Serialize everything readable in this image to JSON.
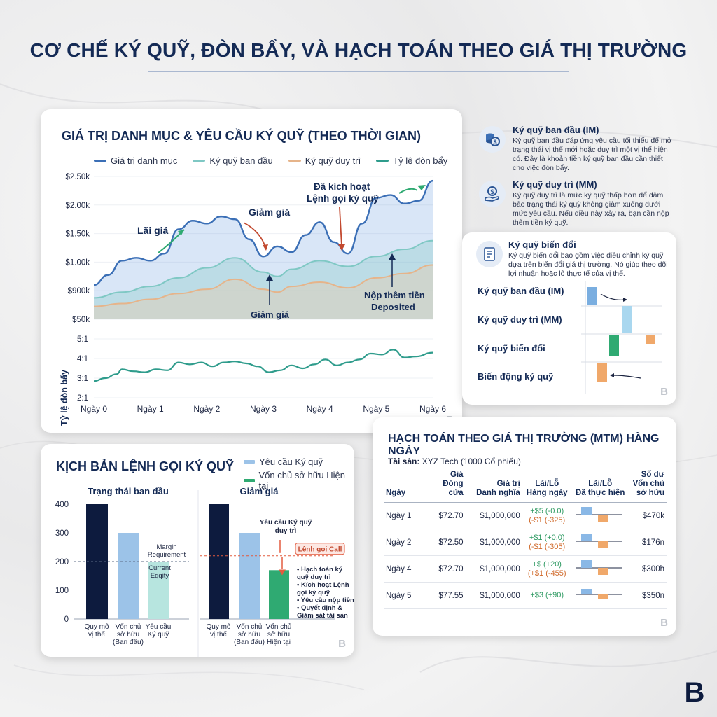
{
  "main_title": "CƠ CHẾ KÝ QUỸ, ĐÒN BẨY, VÀ HẠCH TOÁN THEO GIÁ THỊ TRƯỜNG",
  "colors": {
    "portfolio": "#3b6fb6",
    "initial_margin": "#7fc8c4",
    "maintenance_margin": "#e6b48a",
    "leverage": "#2f9c8c",
    "navy": "#0d1b3e",
    "light_blue": "#9cc3e8",
    "light_teal": "#b7e5df",
    "green": "#2faa72",
    "orange": "#f0a86a",
    "red": "#e25b3f"
  },
  "panel_chart": {
    "title": "GIÁ TRỊ DANH MỤC & YÊU CẦU KÝ QUỸ (THEO THỜI GIAN)",
    "legend": [
      "Giá trị danh mục",
      "Ký quỹ ban đầu",
      "Ký quỹ duy trì",
      "Tỷ lệ đòn bẩy"
    ],
    "annotations": {
      "gain": "Lãi giá",
      "drop1": "Giảm giá",
      "drop2": "Giảm giá",
      "call_line1": "Đã kích hoạt",
      "call_line2": "Lệnh gọi ký quỹ",
      "deposit_line1": "Nộp thêm tiền",
      "deposit_line2": "Deposited"
    },
    "leverage_axis_label": "Tỷ lệ đòn bẩy"
  },
  "chart_data": [
    {
      "type": "area",
      "title": "GIÁ TRỊ DANH MỤC & YÊU CẦU KÝ QUỸ (THEO THỜI GIAN)",
      "x": [
        0,
        0.5,
        1,
        1.5,
        2,
        2.5,
        3,
        3.5,
        4,
        4.5,
        5,
        5.5,
        6
      ],
      "y_tick_labels": [
        "$50k",
        "$900k",
        "$1.00k",
        "$1.50k",
        "$2.00k",
        "$2.50k"
      ],
      "x_tick_labels": [
        "Ngày 0",
        "Ngày 1",
        "Ngày 2",
        "Ngày 3",
        "Ngày 4",
        "Ngày 5",
        "Ngày 6"
      ],
      "ylim": [
        0,
        5
      ],
      "series": [
        {
          "name": "Giá trị danh mục",
          "x": [
            0,
            0.25,
            0.5,
            0.75,
            1,
            1.25,
            1.5,
            1.75,
            2,
            2.25,
            2.5,
            2.75,
            3,
            3.25,
            3.5,
            3.75,
            4,
            4.25,
            4.5,
            4.75,
            5,
            5.25,
            5.5,
            5.75,
            6
          ],
          "values": [
            1.2,
            1.55,
            2.05,
            2.15,
            2.05,
            2.3,
            3.15,
            3.45,
            3.35,
            3.6,
            3.5,
            2.8,
            2.2,
            2.55,
            2.35,
            2.95,
            3.4,
            2.7,
            2.3,
            3.35,
            4.25,
            4.35,
            4.05,
            4.15,
            4.85
          ]
        },
        {
          "name": "Ký quỹ ban đầu",
          "x": [
            0,
            0.5,
            1,
            1.5,
            2,
            2.5,
            3,
            3.25,
            3.5,
            4,
            4.5,
            5,
            5.5,
            6
          ],
          "values": [
            0.75,
            0.95,
            1.15,
            1.45,
            1.8,
            2.15,
            1.65,
            1.5,
            1.75,
            2.05,
            1.85,
            2.2,
            2.45,
            2.75
          ]
        },
        {
          "name": "Ký quỹ duy trì",
          "x": [
            0,
            0.5,
            1,
            1.5,
            2,
            2.5,
            3,
            3.25,
            3.5,
            4,
            4.5,
            5,
            5.5,
            6
          ],
          "values": [
            0.45,
            0.55,
            0.7,
            0.9,
            1.05,
            1.4,
            1.05,
            0.95,
            1.15,
            1.3,
            1.1,
            1.45,
            1.6,
            1.9
          ]
        }
      ]
    },
    {
      "type": "line",
      "x_tick_labels": [
        "Ngày 0",
        "Ngày 1",
        "Ngày 2",
        "Ngày 3",
        "Ngày 4",
        "Ngày 5",
        "Ngày 6"
      ],
      "y_tick_labels": [
        "2:1",
        "3:1",
        "4:1",
        "5:1"
      ],
      "ylabel": "Tỷ lệ đòn bẩy",
      "ylim": [
        2,
        5
      ],
      "series": [
        {
          "name": "Tỷ lệ đòn bẩy",
          "x": [
            0,
            0.2,
            0.4,
            0.5,
            0.7,
            0.9,
            1.1,
            1.3,
            1.5,
            1.7,
            1.9,
            2.1,
            2.3,
            2.5,
            2.7,
            2.9,
            3.1,
            3.3,
            3.5,
            3.7,
            3.9,
            4.1,
            4.3,
            4.5,
            4.7,
            4.9,
            5.1,
            5.3,
            5.5,
            5.7,
            6
          ],
          "values": [
            2.85,
            3.0,
            3.2,
            3.45,
            3.35,
            3.3,
            3.45,
            3.4,
            3.8,
            3.7,
            3.8,
            3.6,
            3.8,
            3.85,
            3.75,
            3.6,
            3.3,
            3.4,
            3.65,
            3.5,
            3.7,
            3.95,
            3.65,
            3.8,
            3.95,
            4.25,
            4.2,
            4.45,
            4.05,
            4.1,
            4.3
          ]
        }
      ]
    },
    {
      "type": "bar",
      "title": "Trạng thái ban đầu",
      "categories": [
        "Quy mô vị thế",
        "Vốn chủ sở hữu (Ban đầu)",
        "Yêu cầu Ký quỹ"
      ],
      "values": [
        400,
        300,
        200
      ],
      "ylim": [
        0,
        400
      ],
      "y_ticks": [
        0,
        100,
        200,
        300,
        400
      ]
    },
    {
      "type": "bar",
      "title": "Giảm giá",
      "categories": [
        "Quy mô vị thế",
        "Vốn chủ sở hữu (Ban đầu)",
        "Vốn chủ sở hữu Hiện tại"
      ],
      "values": [
        400,
        300,
        170
      ],
      "ylim": [
        0,
        400
      ]
    }
  ],
  "definitions": [
    {
      "title": "Ký quỹ ban đầu (IM)",
      "text": "Ký quỹ ban đầu đáp ứng yêu cầu tối thiểu để mở trạng thái vị thế mới hoặc duy trì một vị thế hiện có. Đây là khoản tiền ký quỹ ban đầu cần thiết cho việc đòn bẩy.",
      "icon": "coins-icon"
    },
    {
      "title": "Ký quỹ duy trì (MM)",
      "text": "Ký quỹ duy trì là mức ký quỹ thấp hơn để đảm bảo trạng thái ký quỹ không giảm xuống dưới mức yêu cầu. Nếu điều này xảy ra, bạn cần nộp thêm tiền ký quỹ.",
      "icon": "hand-coin-icon"
    },
    {
      "title": "Ký quỹ biến đổi",
      "text": "Ký quỹ biến đổi bao gồm việc điều chỉnh ký quỹ dựa trên biến đổi giá thị trường. Nó giúp theo dõi lợi nhuận hoặc lỗ thực tế của vị thế.",
      "icon": "document-icon"
    }
  ],
  "variation_rows": [
    "Ký quỹ ban đầu (IM)",
    "Ký quỹ duy trì (MM)",
    "Ký quỹ biến đổi",
    "Biến động ký quỹ"
  ],
  "scenario": {
    "title": "KỊCH BẢN LỆNH GỌI KÝ QUỸ",
    "legend": [
      "Yêu cầu Ký quỹ",
      "Vốn chủ sở hữu Hiện tại"
    ],
    "left_title": "Trạng thái ban đầu",
    "right_title": "Giảm giá",
    "y_ticks": [
      "0",
      "100",
      "200",
      "300",
      "400"
    ],
    "left_labels": [
      [
        "Quy mô",
        "vị thế"
      ],
      [
        "Vốn chủ",
        "sở hữu",
        "(Ban đầu)"
      ],
      [
        "Yêu cầu",
        "Ký quỹ"
      ]
    ],
    "right_labels": [
      [
        "Quy mô",
        "vị thế"
      ],
      [
        "Vốn chủ",
        "sở hữu",
        "(Ban đầu)"
      ],
      [
        "Vốn chủ",
        "sở hữu",
        "Hiện tại"
      ]
    ],
    "margin_req_label": [
      "Margin",
      "Requirement"
    ],
    "current_equity_label": [
      "Current",
      "Eqqity"
    ],
    "req_label": [
      "Yêu cầu Ký quỹ",
      "duy trì"
    ],
    "call_badge": "Lệnh gọi Call",
    "steps": [
      "• Hạch toán ký",
      "  quỹ duy trì",
      "• Kích hoạt Lệnh",
      "  gọi ký quỹ",
      "• Yêu cầu nộp tiền",
      "• Quyết định &",
      "  Giám sát tài sản"
    ]
  },
  "mtm": {
    "title": "HẠCH TOÁN THEO GIÁ THỊ TRƯỜNG (MTM) HÀNG NGÀY",
    "asset_label": "Tài sản:",
    "asset_value": "XYZ Tech (1000 Cổ phiếu)",
    "headers": {
      "day": "Ngày",
      "close": [
        "Giá",
        "Đóng cửa"
      ],
      "notional": [
        "Giá trị",
        "Danh nghĩa"
      ],
      "daily": [
        "Lãi/Lỗ",
        "Hàng ngày"
      ],
      "realized": [
        "Lãi/Lỗ",
        "Đã thực hiện"
      ],
      "equity": [
        "Số dư",
        "Vốn chủ",
        "sở hữu"
      ]
    },
    "rows": [
      {
        "day": "Ngày 1",
        "close": "$72.70",
        "notional": "$1,000,000",
        "pl1": "+$5 (-0.0)",
        "pl2": "(-$1 (-325)",
        "equity": "$470k"
      },
      {
        "day": "Ngày 2",
        "close": "$72.50",
        "notional": "$1,000,000",
        "pl1": "+$1 (+0.0)",
        "pl2": "(-$1 (-305)",
        "equity": "$176n"
      },
      {
        "day": "Ngày 4",
        "close": "$72.70",
        "notional": "$1,000,000",
        "pl1": "+$ (+20)",
        "pl2": "(+$1 (-455)",
        "equity": "$300h"
      },
      {
        "day": "Ngày 5",
        "close": "$77.55",
        "notional": "$1,000,000",
        "pl1": "+$3 (+90)",
        "pl2": "",
        "equity": "$350n"
      }
    ]
  },
  "watermark": "B",
  "brand_logo": "B"
}
